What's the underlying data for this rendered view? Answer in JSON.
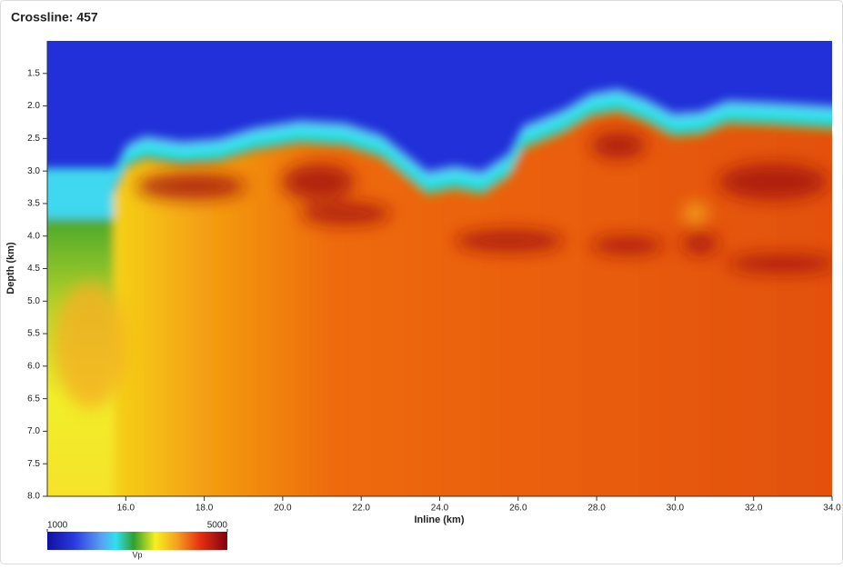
{
  "chart_data": {
    "type": "heatmap",
    "title": "Crossline: 457",
    "xlabel": "Inline (km)",
    "ylabel": "Depth (km)",
    "xlim": [
      14,
      34
    ],
    "xticks": [
      {
        "value": 16,
        "label": "16.0"
      },
      {
        "value": 18,
        "label": "18.0"
      },
      {
        "value": 20,
        "label": "20.0"
      },
      {
        "value": 22,
        "label": "22.0"
      },
      {
        "value": 24,
        "label": "24.0"
      },
      {
        "value": 26,
        "label": "26.0"
      },
      {
        "value": 28,
        "label": "28.0"
      },
      {
        "value": 30,
        "label": "30.0"
      },
      {
        "value": 32,
        "label": "32.0"
      },
      {
        "value": 34,
        "label": "34.0"
      }
    ],
    "ylim": [
      1,
      8
    ],
    "y_inverted": true,
    "yticks": [
      1.5,
      {
        "value": 2,
        "label": "2.0"
      },
      2.5,
      {
        "value": 3,
        "label": "3.0"
      },
      3.5,
      {
        "value": 4,
        "label": "4.0"
      },
      4.5,
      {
        "value": 5,
        "label": "5.0"
      },
      5.5,
      {
        "value": 6,
        "label": "6.0"
      },
      6.5,
      {
        "value": 7,
        "label": "7.0"
      },
      7.5,
      {
        "value": 8,
        "label": "8.0"
      }
    ],
    "colorbar": {
      "label": "Vp",
      "range": [
        1000,
        5000
      ],
      "ticks": [
        1000,
        5000
      ]
    }
  }
}
